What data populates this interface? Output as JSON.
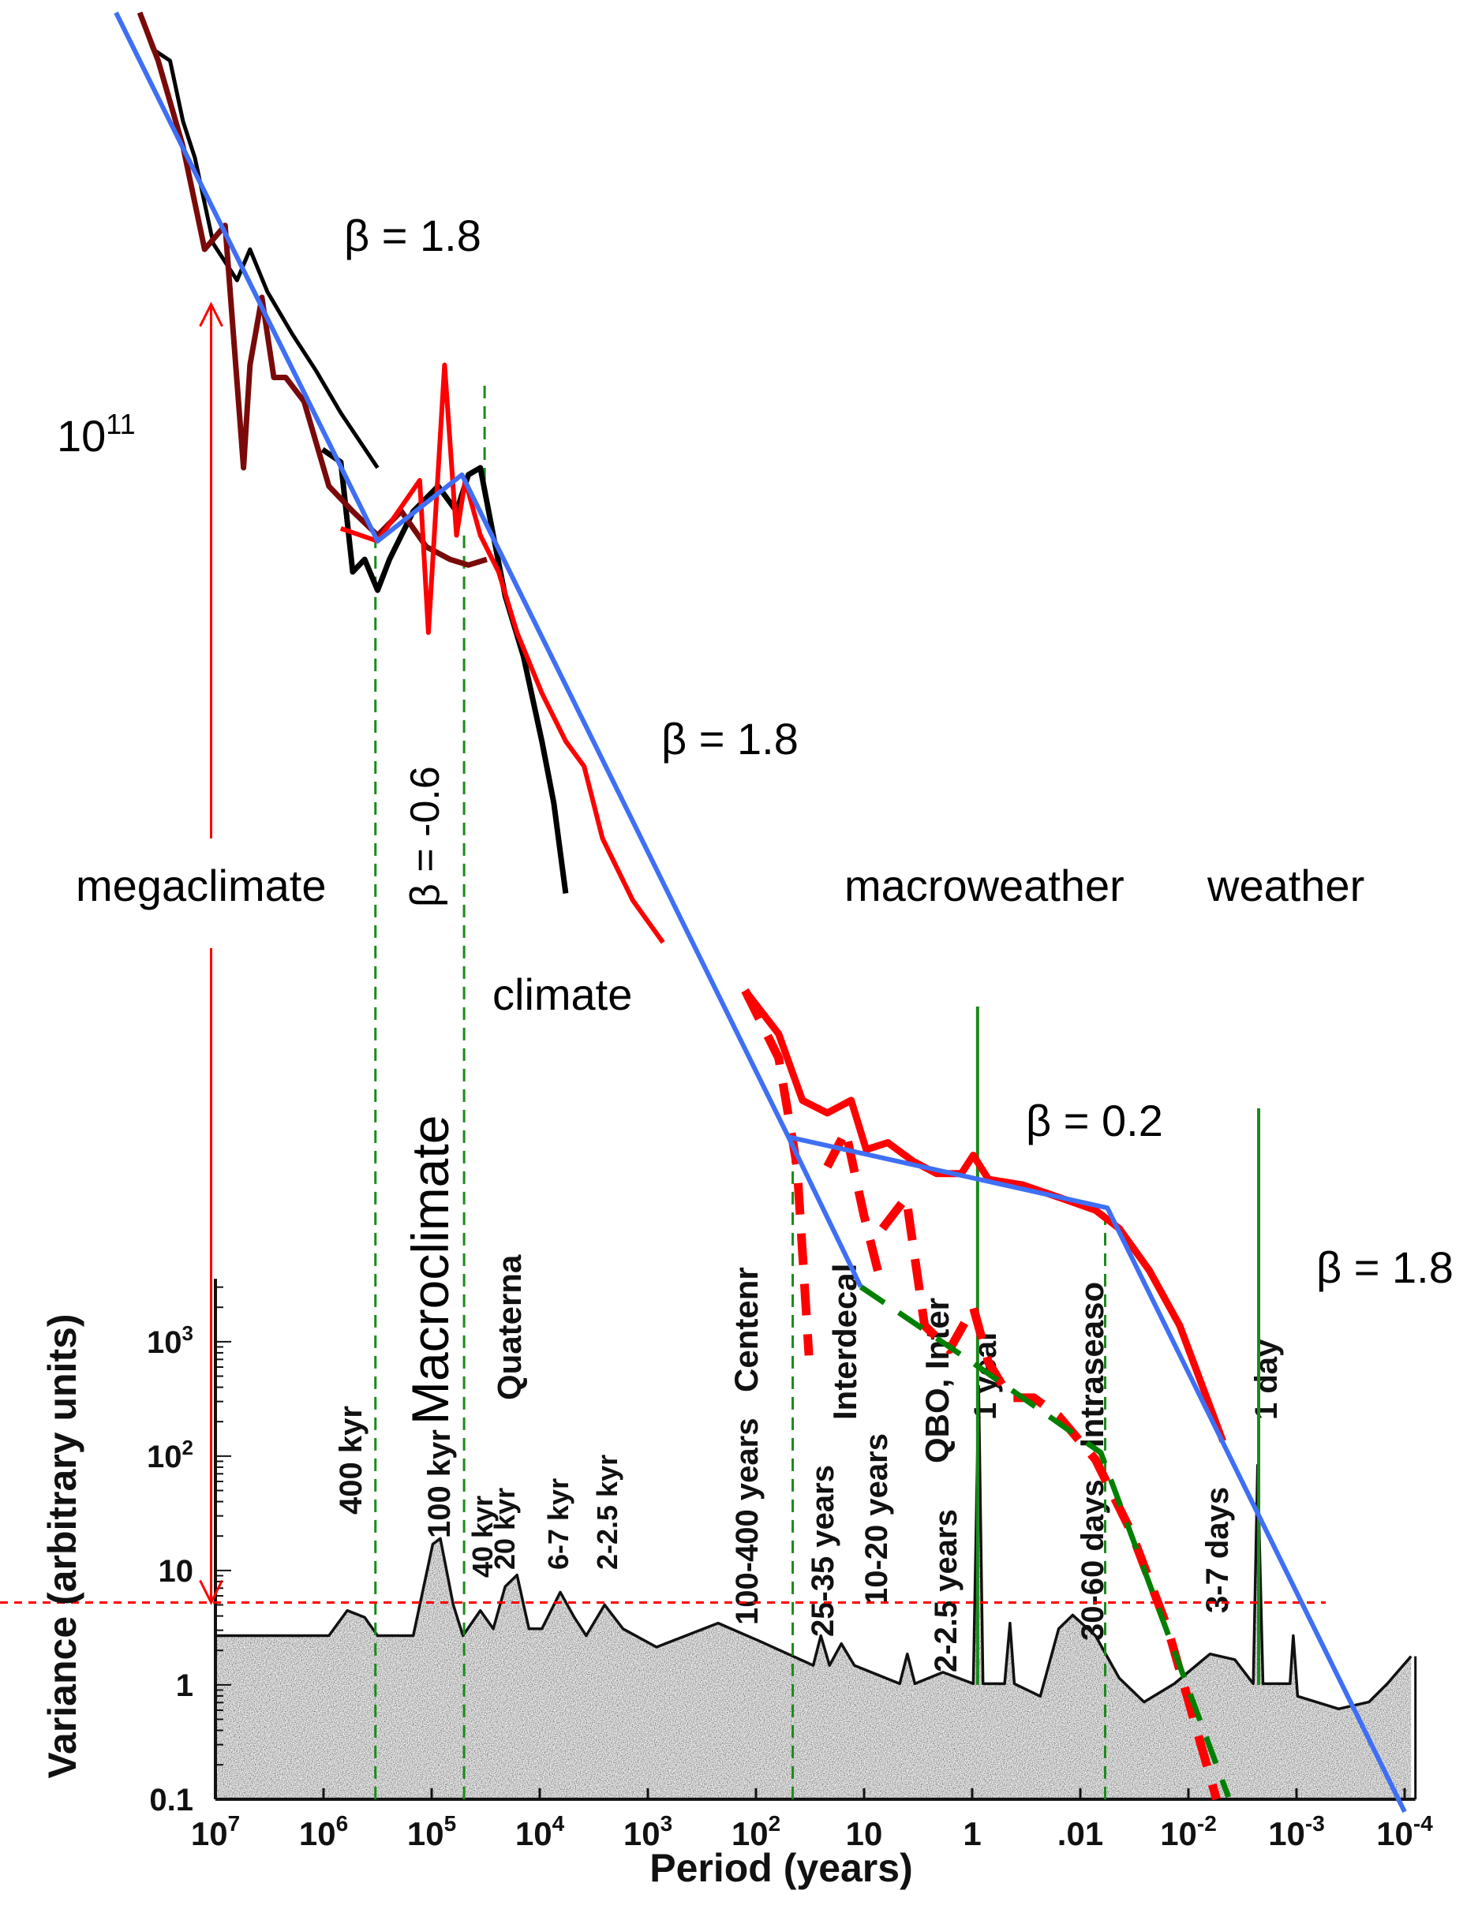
{
  "chart_data": {
    "type": "line",
    "title": "",
    "xlabel": "Period (years)",
    "ylabel": "Variance (arbitrary units)",
    "x_scale": "log10, decreasing to the right",
    "y_scale": "log10",
    "xlim_log10": [
      7,
      -4
    ],
    "ylim_log10_lower_panel": [
      -1,
      3.5
    ],
    "x_ticks": [
      {
        "value": 7,
        "base": "10",
        "exp": "7"
      },
      {
        "value": 6,
        "base": "10",
        "exp": "6"
      },
      {
        "value": 5,
        "base": "10",
        "exp": "5"
      },
      {
        "value": 4,
        "base": "10",
        "exp": "4"
      },
      {
        "value": 3,
        "base": "10",
        "exp": "3"
      },
      {
        "value": 2,
        "base": "10",
        "exp": "2"
      },
      {
        "value": 1,
        "base": "10",
        "exp": ""
      },
      {
        "value": 0,
        "base": "1",
        "exp": ""
      },
      {
        "value": -1,
        "base": ".01",
        "exp": ""
      },
      {
        "value": -2,
        "base": "10",
        "exp": "-2"
      },
      {
        "value": -3,
        "base": "10",
        "exp": "-3"
      },
      {
        "value": -4,
        "base": "10",
        "exp": "-4"
      }
    ],
    "y_ticks": [
      {
        "value": -1,
        "base": "0.1",
        "exp": ""
      },
      {
        "value": 0,
        "base": "1",
        "exp": ""
      },
      {
        "value": 1,
        "base": "10",
        "exp": ""
      },
      {
        "value": 2,
        "base": "10",
        "exp": "2"
      },
      {
        "value": 3,
        "base": "10",
        "exp": "3"
      }
    ],
    "series": [
      {
        "name": "black-series-1",
        "color": "#000000",
        "width": 5,
        "dash": "",
        "points": [
          [
            7.7,
            14.62
          ],
          [
            7.58,
            14.3
          ],
          [
            7.42,
            14.2
          ],
          [
            7.3,
            13.67
          ],
          [
            7.19,
            13.35
          ],
          [
            7.02,
            12.6
          ],
          [
            6.8,
            12.28
          ],
          [
            6.68,
            12.55
          ],
          [
            6.52,
            12.18
          ],
          [
            6.29,
            11.81
          ],
          [
            6.07,
            11.49
          ],
          [
            5.84,
            11.12
          ],
          [
            5.5,
            10.64
          ]
        ]
      },
      {
        "name": "black-series-2",
        "color": "#000000",
        "width": 7,
        "dash": "",
        "points": [
          [
            6.01,
            10.8
          ],
          [
            5.84,
            10.69
          ],
          [
            5.73,
            9.73
          ],
          [
            5.62,
            9.84
          ],
          [
            5.5,
            9.57
          ],
          [
            5.39,
            9.84
          ],
          [
            5.17,
            10.26
          ],
          [
            4.94,
            10.48
          ],
          [
            4.77,
            10.26
          ],
          [
            4.66,
            10.58
          ],
          [
            4.55,
            10.64
          ],
          [
            4.43,
            10.05
          ],
          [
            4.32,
            9.52
          ],
          [
            4.15,
            8.99
          ],
          [
            3.98,
            8.25
          ],
          [
            3.87,
            7.71
          ],
          [
            3.76,
            6.92
          ]
        ]
      },
      {
        "name": "dark-red-series",
        "color": "#7a0a0a",
        "width": 7,
        "dash": "",
        "points": [
          [
            7.7,
            14.62
          ],
          [
            7.53,
            14.2
          ],
          [
            7.3,
            13.45
          ],
          [
            7.1,
            12.55
          ],
          [
            6.91,
            12.76
          ],
          [
            6.74,
            10.64
          ],
          [
            6.68,
            11.54
          ],
          [
            6.57,
            12.13
          ],
          [
            6.46,
            11.43
          ],
          [
            6.35,
            11.43
          ],
          [
            6.18,
            11.22
          ],
          [
            5.95,
            10.48
          ],
          [
            5.73,
            10.26
          ],
          [
            5.5,
            10.05
          ],
          [
            5.28,
            10.26
          ],
          [
            5.05,
            9.95
          ],
          [
            4.83,
            9.84
          ],
          [
            4.66,
            9.79
          ],
          [
            4.49,
            9.84
          ]
        ]
      },
      {
        "name": "red-series-1",
        "color": "#ff0000",
        "width": 6,
        "dash": "",
        "points": [
          [
            5.84,
            10.11
          ],
          [
            5.5,
            10.0
          ],
          [
            5.11,
            10.53
          ],
          [
            5.03,
            9.2
          ],
          [
            4.88,
            11.54
          ],
          [
            4.77,
            10.05
          ],
          [
            4.69,
            10.53
          ],
          [
            4.55,
            10.05
          ],
          [
            4.38,
            9.73
          ],
          [
            4.21,
            9.2
          ],
          [
            3.98,
            8.67
          ],
          [
            3.76,
            8.25
          ],
          [
            3.59,
            8.03
          ],
          [
            3.42,
            7.4
          ],
          [
            3.14,
            6.86
          ],
          [
            2.86,
            6.49
          ]
        ]
      },
      {
        "name": "red-series-2",
        "color": "#ff0000",
        "width": 9,
        "dash": "",
        "points": [
          [
            2.1,
            6.07
          ],
          [
            1.79,
            5.69
          ],
          [
            1.57,
            5.11
          ],
          [
            1.34,
            5.0
          ],
          [
            1.12,
            5.11
          ],
          [
            0.98,
            4.68
          ],
          [
            0.78,
            4.74
          ],
          [
            0.55,
            4.58
          ],
          [
            0.33,
            4.47
          ],
          [
            0.1,
            4.47
          ],
          [
            -0.01,
            4.63
          ],
          [
            -0.15,
            4.42
          ],
          [
            -0.47,
            4.37
          ],
          [
            -0.81,
            4.26
          ],
          [
            -1.14,
            4.15
          ],
          [
            -1.36,
            3.99
          ],
          [
            -1.64,
            3.62
          ],
          [
            -1.92,
            3.14
          ],
          [
            -2.15,
            2.56
          ],
          [
            -2.32,
            2.13
          ]
        ]
      },
      {
        "name": "red-dashed-series-a",
        "color": "#ff0000",
        "width": 11,
        "dash": "40 24",
        "points": [
          [
            2.1,
            6.07
          ],
          [
            1.79,
            5.48
          ],
          [
            1.62,
            4.53
          ],
          [
            1.51,
            2.88
          ]
        ]
      },
      {
        "name": "red-dashed-series-b",
        "color": "#ff0000",
        "width": 11,
        "dash": "40 24",
        "points": [
          [
            1.34,
            4.53
          ],
          [
            1.17,
            4.84
          ],
          [
            1.0,
            4.1
          ],
          [
            0.83,
            3.46
          ]
        ]
      },
      {
        "name": "red-dashed-series-c",
        "color": "#ff0000",
        "width": 11,
        "dash": "40 24",
        "points": [
          [
            0.83,
            3.99
          ],
          [
            0.61,
            4.26
          ],
          [
            0.44,
            3.14
          ],
          [
            0.21,
            2.93
          ],
          [
            -0.01,
            3.3
          ],
          [
            -0.15,
            2.82
          ],
          [
            -0.35,
            2.51
          ],
          [
            -0.57,
            2.51
          ],
          [
            -0.8,
            2.35
          ],
          [
            -1.14,
            1.97
          ],
          [
            -1.47,
            1.34
          ],
          [
            -1.81,
            0.49
          ],
          [
            -2.26,
            -1.0
          ]
        ]
      },
      {
        "name": "green-dashed-series",
        "color": "#008000",
        "width": 7,
        "dash": "36 22",
        "points": [
          [
            1.03,
            3.48
          ],
          [
            0.0,
            2.82
          ],
          [
            -1.19,
            2.03
          ],
          [
            -2.37,
            -0.98
          ]
        ]
      },
      {
        "name": "blue-fit-line",
        "color": "#3f6ff5",
        "width": 6,
        "dash": "",
        "points": [
          [
            7.92,
            14.62
          ],
          [
            5.5,
            10.0
          ],
          [
            4.72,
            10.58
          ],
          [
            1.7,
            4.79
          ],
          [
            -1.25,
            4.17
          ],
          [
            -4.0,
            -1.11
          ]
        ]
      },
      {
        "name": "blue-fit-branch",
        "color": "#3f6ff5",
        "width": 6,
        "dash": "",
        "points": [
          [
            1.7,
            4.79
          ],
          [
            1.03,
            3.48
          ]
        ]
      }
    ],
    "spectrum": {
      "name": "background-variance-spectrum",
      "points": [
        [
          7.0,
          0.43
        ],
        [
          5.95,
          0.43
        ],
        [
          5.78,
          0.65
        ],
        [
          5.62,
          0.59
        ],
        [
          5.5,
          0.43
        ],
        [
          5.17,
          0.43
        ],
        [
          4.99,
          1.23
        ],
        [
          4.92,
          1.28
        ],
        [
          4.8,
          0.7
        ],
        [
          4.71,
          0.43
        ],
        [
          4.55,
          0.65
        ],
        [
          4.43,
          0.49
        ],
        [
          4.32,
          0.86
        ],
        [
          4.21,
          0.96
        ],
        [
          4.1,
          0.49
        ],
        [
          3.98,
          0.49
        ],
        [
          3.81,
          0.81
        ],
        [
          3.68,
          0.59
        ],
        [
          3.57,
          0.43
        ],
        [
          3.4,
          0.7
        ],
        [
          3.23,
          0.49
        ],
        [
          2.92,
          0.33
        ],
        [
          2.35,
          0.54
        ],
        [
          1.96,
          0.38
        ],
        [
          1.47,
          0.17
        ],
        [
          1.4,
          0.43
        ],
        [
          1.32,
          0.17
        ],
        [
          1.21,
          0.36
        ],
        [
          1.09,
          0.17
        ],
        [
          0.67,
          0.01
        ],
        [
          0.6,
          0.27
        ],
        [
          0.53,
          0.01
        ],
        [
          0.27,
          0.11
        ],
        [
          -0.01,
          0.01
        ],
        [
          -0.06,
          2.61
        ],
        [
          -0.1,
          0.01
        ],
        [
          -0.3,
          0.01
        ],
        [
          -0.35,
          0.54
        ],
        [
          -0.39,
          0.01
        ],
        [
          -0.63,
          -0.1
        ],
        [
          -0.8,
          0.49
        ],
        [
          -0.93,
          0.61
        ],
        [
          -1.14,
          0.43
        ],
        [
          -1.36,
          0.06
        ],
        [
          -1.59,
          -0.15
        ],
        [
          -1.87,
          0.01
        ],
        [
          -2.2,
          0.27
        ],
        [
          -2.43,
          0.22
        ],
        [
          -2.6,
          0.01
        ],
        [
          -2.64,
          1.92
        ],
        [
          -2.69,
          0.01
        ],
        [
          -2.94,
          0.01
        ],
        [
          -2.97,
          0.43
        ],
        [
          -3.01,
          -0.1
        ],
        [
          -3.39,
          -0.21
        ],
        [
          -3.67,
          -0.15
        ],
        [
          -3.84,
          0.01
        ],
        [
          -4.06,
          0.25
        ]
      ]
    },
    "green_solid_lines": [
      {
        "name": "one-year-line",
        "logP": -0.05,
        "from": 0.0,
        "to": 5.93
      },
      {
        "name": "one-day-line",
        "logP": -2.65,
        "from": 0.0,
        "to": 5.04
      }
    ],
    "green_dashed_lines": [
      {
        "name": "megaclimate-boundary",
        "logP": 5.52,
        "from": -1.0,
        "to": 10.05
      },
      {
        "name": "macroclimate-boundary",
        "logP": 4.7,
        "from": -1.0,
        "to": 10.05
      },
      {
        "name": "quaternary-marker",
        "logP": 4.51,
        "from": 10.53,
        "to": 11.38
      },
      {
        "name": "climate-macroweather-boundary",
        "logP": 1.66,
        "from": -1.0,
        "to": 4.58
      },
      {
        "name": "macroweather-weather-boundary",
        "logP": -1.23,
        "from": -1.0,
        "to": 4.1
      }
    ],
    "reference_level": {
      "log10_variance": 0.72,
      "color": "#ff0000"
    },
    "range_arrow": {
      "logP": 7.04,
      "from": 0.72,
      "to": 12.07,
      "gap": [
        6.44,
        7.4
      ],
      "color": "#ff0000"
    },
    "annotations": {
      "beta_top": "β = 1.8",
      "ten_11_base": "10",
      "ten_11_exp": "11",
      "beta_neg": "β  =  -0.6",
      "beta_climate": "β = 1.8",
      "megaclimate": "megaclimate",
      "climate": "climate",
      "macroweather": "macroweather",
      "weather": "weather",
      "beta_macroweather": "β =  0.2",
      "beta_weather": "β = 1.8",
      "macroclimate": "Macroclimate"
    },
    "peak_labels": {
      "kyr400": "400 kyr",
      "kyr100": "100 kyr",
      "kyr40": "40 kyr",
      "kyr20": "20 kyr",
      "kyr6_7": "6-7 kyr",
      "kyr2_2_5": "2-2.5 kyr",
      "quaternary": "Quaterna",
      "centennial": "Centenr",
      "years100_400": "100-400 years",
      "years25_35": "25-35 years",
      "interdecadal": "Interdecal",
      "years10_20": "10-20 years",
      "qbo": "QBO, Inter",
      "years2_2_5": "2-2.5 years",
      "one_year": "1 year",
      "intraseasonal": "Intraseaso",
      "days30_60": "30-60 days",
      "days3_7": "3-7 days",
      "one_day": "1 day"
    }
  }
}
